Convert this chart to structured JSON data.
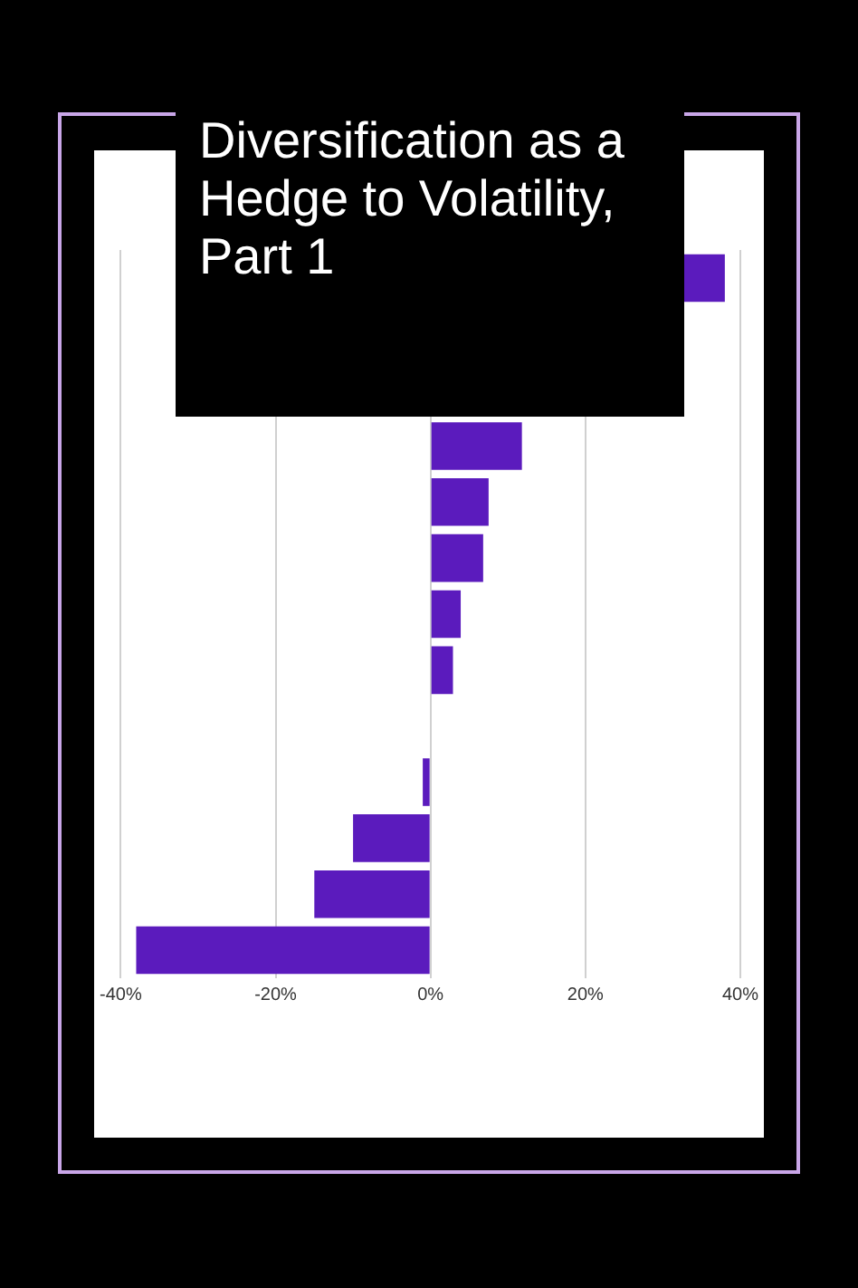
{
  "chart_data": {
    "type": "bar",
    "orientation": "horizontal",
    "title": "Diversification as a Hedge to Volatility, Part 1",
    "categories": [
      null,
      null,
      null,
      null,
      null,
      null,
      null,
      null,
      null,
      null,
      null,
      null,
      null
    ],
    "values": [
      38,
      null,
      null,
      11.8,
      7.5,
      6.8,
      3.9,
      2.9,
      0,
      -1,
      -10,
      -15,
      -38
    ],
    "color": "#5b1bbd",
    "xlim": [
      -40,
      40
    ],
    "xticks": [
      {
        "value": -40,
        "label": "-40%"
      },
      {
        "value": -20,
        "label": "-20%"
      },
      {
        "value": 0,
        "label": "0%"
      },
      {
        "value": 20,
        "label": "20%"
      },
      {
        "value": 40,
        "label": "40%"
      }
    ],
    "grid": "x",
    "tick_labels": "x"
  }
}
